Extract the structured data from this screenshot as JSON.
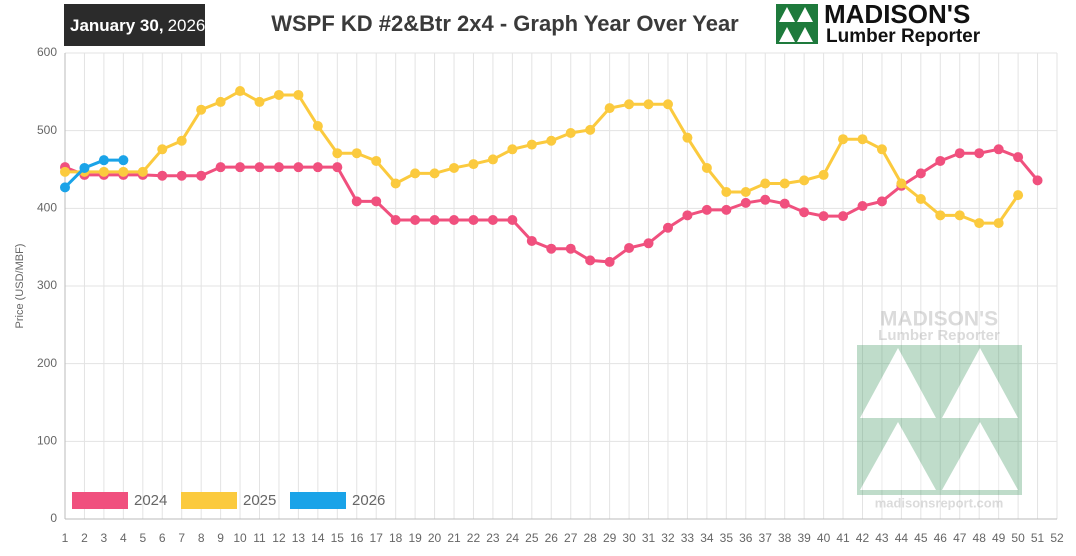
{
  "header": {
    "date": {
      "day": "January 30,",
      "year": "2026"
    },
    "logo": {
      "name": "MADISON'S",
      "tagline": "Lumber Reporter"
    }
  },
  "watermark": {
    "name": "MADISON'S",
    "tagline": "Lumber Reporter",
    "site": "madisonsreport.com"
  },
  "chart_data": {
    "type": "line",
    "title": "WSPF KD #2&Btr 2x4 - Graph Year Over Year",
    "y_label": "Price (USD/MBF)",
    "categories": [
      1,
      2,
      3,
      4,
      5,
      6,
      7,
      8,
      9,
      10,
      11,
      12,
      13,
      14,
      15,
      16,
      17,
      18,
      19,
      20,
      21,
      22,
      23,
      24,
      25,
      26,
      27,
      28,
      29,
      30,
      31,
      32,
      33,
      34,
      35,
      36,
      37,
      38,
      39,
      40,
      41,
      42,
      43,
      44,
      45,
      46,
      47,
      48,
      49,
      50,
      51,
      52
    ],
    "series": [
      {
        "name": "2024",
        "color": "#f0507e",
        "values": [
          453,
          443,
          443,
          443,
          443,
          442,
          442,
          442,
          453,
          453,
          453,
          453,
          453,
          453,
          453,
          409,
          409,
          385,
          385,
          385,
          385,
          385,
          385,
          385,
          358,
          348,
          348,
          333,
          331,
          349,
          355,
          375,
          391,
          398,
          398,
          407,
          411,
          406,
          395,
          390,
          390,
          403,
          409,
          429,
          445,
          461,
          471,
          471,
          476,
          466,
          436,
          null
        ]
      },
      {
        "name": "2025",
        "color": "#fbca3e",
        "values": [
          447,
          447,
          447,
          447,
          447,
          476,
          487,
          527,
          537,
          551,
          537,
          546,
          546,
          506,
          471,
          471,
          461,
          432,
          445,
          445,
          452,
          457,
          463,
          476,
          482,
          487,
          497,
          501,
          529,
          534,
          534,
          534,
          491,
          452,
          421,
          421,
          432,
          432,
          436,
          443,
          489,
          489,
          476,
          432,
          412,
          391,
          391,
          381,
          381,
          417,
          null,
          null
        ]
      },
      {
        "name": "2026",
        "color": "#1aa3e8",
        "values": [
          427,
          452,
          462,
          462,
          null,
          null,
          null,
          null,
          null,
          null,
          null,
          null,
          null,
          null,
          null,
          null,
          null,
          null,
          null,
          null,
          null,
          null,
          null,
          null,
          null,
          null,
          null,
          null,
          null,
          null,
          null,
          null,
          null,
          null,
          null,
          null,
          null,
          null,
          null,
          null,
          null,
          null,
          null,
          null,
          null,
          null,
          null,
          null,
          null,
          null,
          null,
          null
        ]
      }
    ],
    "ylim": [
      0,
      600
    ],
    "yticks": [
      0,
      100,
      200,
      300,
      400,
      500,
      600
    ],
    "grid": true,
    "legend": "bottom-left"
  }
}
